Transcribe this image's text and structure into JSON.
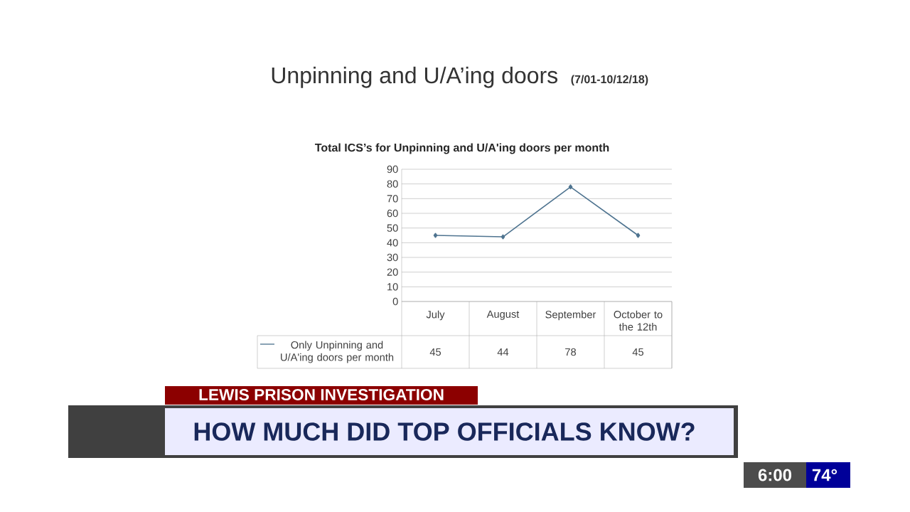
{
  "chart_data": {
    "type": "line",
    "title": "Unpinning and U/A’ing doors",
    "subtitle": "(7/01-10/12/18)",
    "categories": [
      "July",
      "August",
      "September",
      "October to the 12th"
    ],
    "series": [
      {
        "name": "Only Unpinning and U/A'ing doors per month",
        "color": "#4f7490",
        "values": [
          45,
          44,
          78,
          45
        ]
      }
    ],
    "ylim": [
      0,
      90
    ],
    "yticks": [
      0,
      10,
      20,
      30,
      40,
      50,
      60,
      70,
      80,
      90
    ],
    "grid": "y",
    "marker": "diamond",
    "line_style": "solid",
    "legend": "bottom left",
    "data_labels": true,
    "annotations": [
      "Total ICS’s for Unpinning and U/A'ing doors per month",
      "LEWIS PRISON INVESTIGATION",
      "HOW MUCH DID TOP OFFICIALS KNOW?",
      "6:00",
      "74°"
    ]
  }
}
